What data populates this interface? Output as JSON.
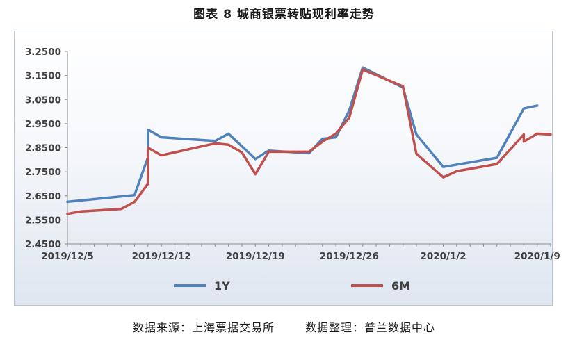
{
  "title": "图表 8  城商银票转贴现利率走势",
  "source": {
    "data_source": "数据来源：上海票据交易所",
    "data_compiler": "数据整理：普兰数据中心"
  },
  "colors": {
    "series_1y": "#4f81bd",
    "series_6m": "#c0504d",
    "axis": "#8c8c8c",
    "tick_text": "#404040"
  },
  "chart_data": {
    "type": "line",
    "title": "",
    "xlabel": "",
    "ylabel": "",
    "ylim": [
      2.45,
      3.25
    ],
    "yticks": [
      "3.2500",
      "3.1500",
      "3.0500",
      "2.9500",
      "2.8500",
      "2.7500",
      "2.6500",
      "2.5500",
      "2.4500"
    ],
    "xlim": [
      "2019/12/5",
      "2020/1/10"
    ],
    "xticks": [
      "2019/12/5",
      "2019/12/12",
      "2019/12/19",
      "2019/12/26",
      "2020/1/2",
      "2020/1/9"
    ],
    "grid": false,
    "legend": "bottom",
    "series": [
      {
        "name": "1Y",
        "color": "#4f81bd",
        "points": [
          [
            "2019/12/5",
            2.625
          ],
          [
            "2019/12/10",
            2.653
          ],
          [
            "2019/12/11",
            2.81
          ],
          [
            "2019/12/11",
            2.925
          ],
          [
            "2019/12/12",
            2.893
          ],
          [
            "2019/12/16",
            2.878
          ],
          [
            "2019/12/17",
            2.908
          ],
          [
            "2019/12/19",
            2.803
          ],
          [
            "2019/12/20",
            2.838
          ],
          [
            "2019/12/23",
            2.827
          ],
          [
            "2019/12/24",
            2.887
          ],
          [
            "2019/12/25",
            2.893
          ],
          [
            "2019/12/26",
            3.005
          ],
          [
            "2019/12/27",
            3.183
          ],
          [
            "2019/12/30",
            3.1
          ],
          [
            "2019/12/31",
            2.905
          ],
          [
            "2020/1/2",
            2.77
          ],
          [
            "2020/1/6",
            2.808
          ],
          [
            "2020/1/8",
            3.013
          ],
          [
            "2020/1/9",
            3.025
          ]
        ]
      },
      {
        "name": "6M",
        "color": "#c0504d",
        "points": [
          [
            "2019/12/5",
            2.575
          ],
          [
            "2019/12/6",
            2.585
          ],
          [
            "2019/12/9",
            2.595
          ],
          [
            "2019/12/10",
            2.625
          ],
          [
            "2019/12/11",
            2.7
          ],
          [
            "2019/12/11",
            2.85
          ],
          [
            "2019/12/12",
            2.818
          ],
          [
            "2019/12/16",
            2.868
          ],
          [
            "2019/12/17",
            2.862
          ],
          [
            "2019/12/18",
            2.83
          ],
          [
            "2019/12/19",
            2.74
          ],
          [
            "2019/12/20",
            2.833
          ],
          [
            "2019/12/23",
            2.833
          ],
          [
            "2019/12/24",
            2.875
          ],
          [
            "2019/12/25",
            2.908
          ],
          [
            "2019/12/26",
            2.975
          ],
          [
            "2019/12/27",
            3.175
          ],
          [
            "2019/12/30",
            3.105
          ],
          [
            "2019/12/31",
            2.825
          ],
          [
            "2020/1/2",
            2.727
          ],
          [
            "2020/1/3",
            2.752
          ],
          [
            "2020/1/6",
            2.782
          ],
          [
            "2020/1/8",
            2.905
          ],
          [
            "2020/1/8",
            2.875
          ],
          [
            "2020/1/9",
            2.908
          ],
          [
            "2020/1/10",
            2.905
          ]
        ]
      }
    ]
  }
}
